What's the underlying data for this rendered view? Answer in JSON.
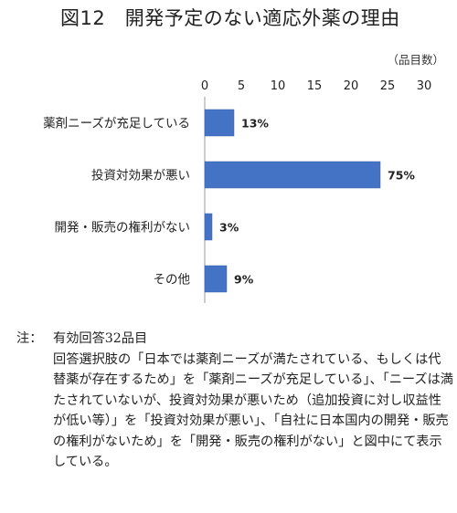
{
  "title": "図12　開発予定のない適応外薬の理由",
  "chart_data": {
    "type": "bar",
    "orientation": "horizontal",
    "unit_label": "（品目数）",
    "xlim": [
      0,
      30
    ],
    "ticks": [
      0,
      5,
      10,
      15,
      20,
      25,
      30
    ],
    "categories": [
      "薬剤ニーズが充足している",
      "投資対効果が悪い",
      "開発・販売の権利がない",
      "その他"
    ],
    "values": [
      4,
      24,
      1,
      3
    ],
    "data_labels": [
      "13%",
      "75%",
      "3%",
      "9%"
    ],
    "bar_color": "#4472c4",
    "grid": false
  },
  "note": {
    "label": "注：",
    "first_line": "有効回答32品目",
    "body": "回答選択肢の「日本では薬剤ニーズが満たされている、もしくは代替薬が存在するため」を「薬剤ニーズが充足している」、「ニーズは満たされていないが、投資対効果が悪いため（追加投資に対し収益性が低い等）」を「投資対効果が悪い」、「自社に日本国内の開発・販売の権利がないため」を「開発・販売の権利がない」と図中にて表示している。"
  }
}
